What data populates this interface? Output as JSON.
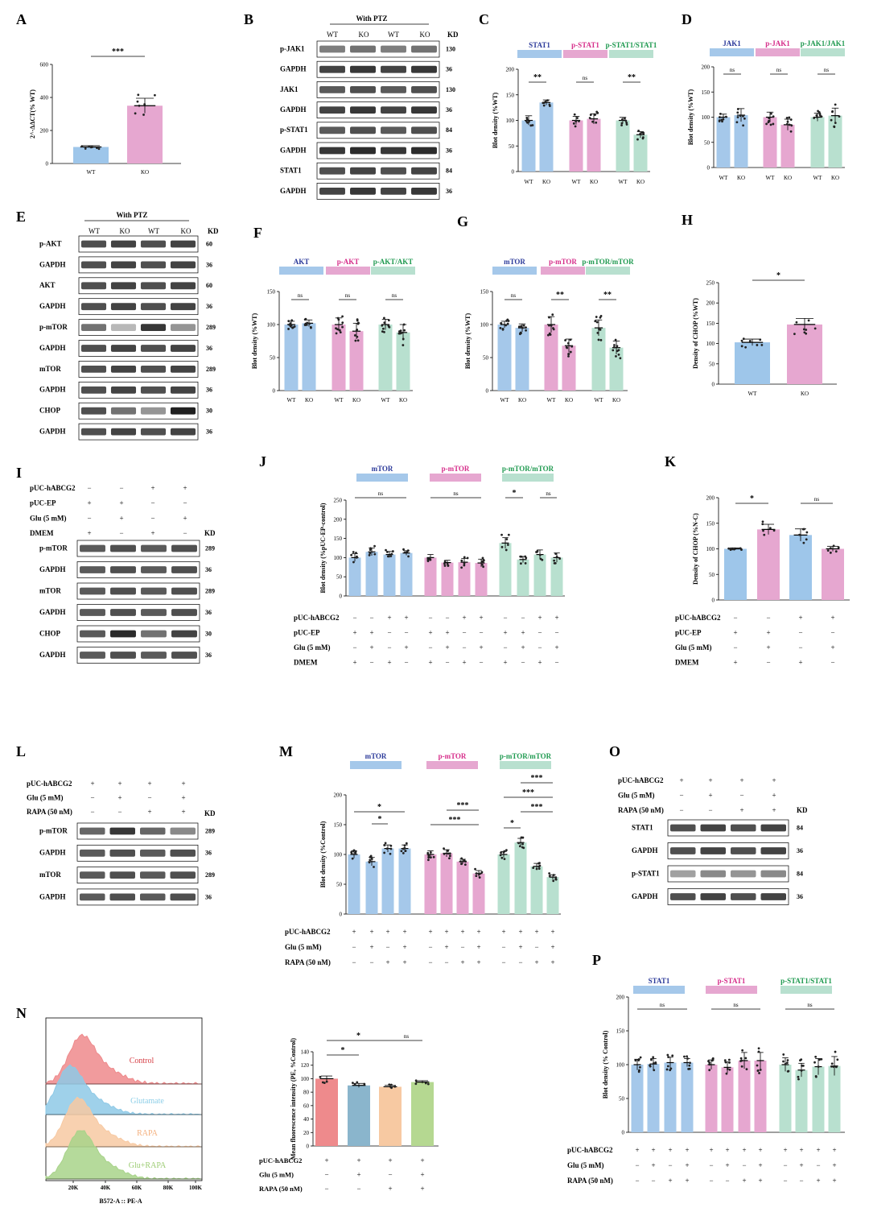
{
  "colors": {
    "blue": "#a5c8ea",
    "blue_bar": "#9ec6ea",
    "pink": "#e6a7d0",
    "green": "#b8e0cf",
    "orange": "#f7c9a2",
    "red_hist": "#ee8a8c",
    "blue_hist": "#8ec9e6",
    "green_hist": "#a8d38a",
    "blue_text": "#2b3a9a",
    "pink_text": "#d62d8a",
    "green_text": "#1f9a50"
  },
  "panels": {
    "A": {
      "letter": "A",
      "ylabel": "2^-ΔΔCT(% WT)",
      "sig": "***",
      "xticks": [
        "WT",
        "KO"
      ],
      "yticks": [
        "0",
        "200",
        "400",
        "600"
      ]
    },
    "B": {
      "letter": "B",
      "header": "With PTZ",
      "cols": [
        "WT",
        "KO",
        "WT",
        "KO"
      ],
      "kd": "KD",
      "rows": [
        {
          "name": "p-JAK1",
          "kd": "130"
        },
        {
          "name": "GAPDH",
          "kd": "36"
        },
        {
          "name": "JAK1",
          "kd": "130"
        },
        {
          "name": "GAPDH",
          "kd": "36"
        },
        {
          "name": "p-STAT1",
          "kd": "84"
        },
        {
          "name": "GAPDH",
          "kd": "36"
        },
        {
          "name": "STAT1",
          "kd": "84"
        },
        {
          "name": "GAPDH",
          "kd": "36"
        }
      ]
    },
    "C": {
      "letter": "C",
      "legend": [
        "STAT1",
        "p-STAT1",
        "p-STAT1/STAT1"
      ],
      "sig": [
        "**",
        "ns",
        "**"
      ],
      "ylabel": "Blot density (%WT)",
      "yticks": [
        "0",
        "50",
        "100",
        "150",
        "200"
      ],
      "xticks": [
        "WT",
        "KO"
      ]
    },
    "D": {
      "letter": "D",
      "legend": [
        "JAK1",
        "p-JAK1",
        "p-JAK1/JAK1"
      ],
      "sig": [
        "ns",
        "ns",
        "ns"
      ],
      "ylabel": "Blot density (%WT)",
      "yticks": [
        "0",
        "50",
        "100",
        "150",
        "200"
      ],
      "xticks": [
        "WT",
        "KO"
      ]
    },
    "E": {
      "letter": "E",
      "header": "With PTZ",
      "cols": [
        "WT",
        "KO",
        "WT",
        "KO"
      ],
      "kd": "KD",
      "rows": [
        {
          "name": "p-AKT",
          "kd": "60"
        },
        {
          "name": "GAPDH",
          "kd": "36"
        },
        {
          "name": "AKT",
          "kd": "60"
        },
        {
          "name": "GAPDH",
          "kd": "36"
        },
        {
          "name": "p-mTOR",
          "kd": "289"
        },
        {
          "name": "GAPDH",
          "kd": "36"
        },
        {
          "name": "mTOR",
          "kd": "289"
        },
        {
          "name": "GAPDH",
          "kd": "36"
        },
        {
          "name": "CHOP",
          "kd": "30"
        },
        {
          "name": "GAPDH",
          "kd": "36"
        }
      ]
    },
    "F": {
      "letter": "F",
      "legend": [
        "AKT",
        "p-AKT",
        "p-AKT/AKT"
      ],
      "sig": [
        "ns",
        "ns",
        "ns"
      ],
      "ylabel": "Blot density (%WT)",
      "yticks": [
        "0",
        "50",
        "100",
        "150"
      ],
      "xticks": [
        "WT",
        "KO"
      ]
    },
    "G": {
      "letter": "G",
      "legend": [
        "mTOR",
        "p-mTOR",
        "p-mTOR/mTOR"
      ],
      "sig": [
        "ns",
        "**",
        "**"
      ],
      "ylabel": "Blot density (%WT)",
      "yticks": [
        "0",
        "50",
        "100",
        "150"
      ],
      "xticks": [
        "WT",
        "KO"
      ]
    },
    "H": {
      "letter": "H",
      "ylabel": "Density of CHOP (%WT)",
      "sig": "*",
      "yticks": [
        "0",
        "50",
        "100",
        "150",
        "200",
        "250"
      ],
      "xticks": [
        "WT",
        "KO"
      ]
    },
    "I": {
      "letter": "I",
      "conds": [
        {
          "name": "pUC-hABCG2",
          "v": [
            "−",
            "−",
            "+",
            "+"
          ]
        },
        {
          "name": "pUC-EP",
          "v": [
            "+",
            "+",
            "−",
            "−"
          ]
        },
        {
          "name": "Glu (5 mM)",
          "v": [
            "−",
            "+",
            "−",
            "+"
          ]
        },
        {
          "name": "DMEM",
          "v": [
            "+",
            "−",
            "+",
            "−"
          ]
        }
      ],
      "kd": "KD",
      "rows": [
        {
          "name": "p-mTOR",
          "kd": "289"
        },
        {
          "name": "GAPDH",
          "kd": "36"
        },
        {
          "name": "mTOR",
          "kd": "289"
        },
        {
          "name": "GAPDH",
          "kd": "36"
        },
        {
          "name": "CHOP",
          "kd": "30"
        },
        {
          "name": "GAPDH",
          "kd": "36"
        }
      ]
    },
    "J": {
      "letter": "J",
      "legend": [
        "mTOR",
        "p-mTOR",
        "p-mTOR/mTOR"
      ],
      "ylabel": "Blot density (%pUC-EP-control)",
      "yticks": [
        "0",
        "50",
        "100",
        "150",
        "200",
        "250"
      ],
      "sig": [
        "ns",
        "ns",
        "*",
        "ns"
      ],
      "conds": [
        {
          "name": "pUC-hABCG2",
          "v": [
            "−",
            "−",
            "+",
            "+"
          ]
        },
        {
          "name": "pUC-EP",
          "v": [
            "+",
            "+",
            "−",
            "−"
          ]
        },
        {
          "name": "Glu (5 mM)",
          "v": [
            "−",
            "+",
            "−",
            "+"
          ]
        },
        {
          "name": "DMEM",
          "v": [
            "+",
            "−",
            "+",
            "−"
          ]
        }
      ]
    },
    "K": {
      "letter": "K",
      "ylabel": "Density of CHOP (%N-C)",
      "yticks": [
        "0",
        "50",
        "100",
        "150",
        "200"
      ],
      "sig": [
        "*",
        "ns"
      ],
      "conds": [
        {
          "name": "pUC-hABCG2",
          "v": [
            "−",
            "−",
            "+",
            "+"
          ]
        },
        {
          "name": "pUC-EP",
          "v": [
            "+",
            "+",
            "−",
            "−"
          ]
        },
        {
          "name": "Glu (5 mM)",
          "v": [
            "−",
            "+",
            "−",
            "+"
          ]
        },
        {
          "name": "DMEM",
          "v": [
            "+",
            "−",
            "+",
            "−"
          ]
        }
      ]
    },
    "L": {
      "letter": "L",
      "conds": [
        {
          "name": "pUC-hABCG2",
          "v": [
            "+",
            "+",
            "+",
            "+"
          ]
        },
        {
          "name": "Glu (5 mM)",
          "v": [
            "−",
            "+",
            "−",
            "+"
          ]
        },
        {
          "name": "RAPA (50 nM)",
          "v": [
            "−",
            "−",
            "+",
            "+"
          ]
        }
      ],
      "kd": "KD",
      "rows": [
        {
          "name": "p-mTOR",
          "kd": "289"
        },
        {
          "name": "GAPDH",
          "kd": "36"
        },
        {
          "name": "mTOR",
          "kd": "289"
        },
        {
          "name": "GAPDH",
          "kd": "36"
        }
      ]
    },
    "M": {
      "letter": "M",
      "legend": [
        "mTOR",
        "p-mTOR",
        "p-mTOR/mTOR"
      ],
      "ylabel": "Blot density (%Control)",
      "yticks": [
        "0",
        "50",
        "100",
        "150",
        "200"
      ],
      "sig": [
        "*",
        "*",
        "***",
        "***",
        "*",
        "***",
        "***",
        "***"
      ],
      "conds": [
        {
          "name": "pUC-hABCG2",
          "v": [
            "+",
            "+",
            "+",
            "+"
          ]
        },
        {
          "name": "Glu (5 mM)",
          "v": [
            "−",
            "+",
            "−",
            "+"
          ]
        },
        {
          "name": "RAPA (50 nM)",
          "v": [
            "−",
            "−",
            "+",
            "+"
          ]
        }
      ]
    },
    "N": {
      "letter": "N",
      "hist_labels": [
        "Control",
        "Glutamate",
        "RAPA",
        "Glu+RAPA"
      ],
      "hist_xticks": [
        "20K",
        "40K",
        "60K",
        "80K",
        "100K"
      ],
      "hist_xlabel": "B572-A :: PE-A",
      "bar_ylabel": "Mean fluorescence intensity (PE, %Control)",
      "bar_yticks": [
        "0",
        "20",
        "40",
        "60",
        "80",
        "100",
        "120",
        "140"
      ],
      "sig": [
        "*",
        "*",
        "ns"
      ],
      "conds": [
        {
          "name": "pUC-hABCG2",
          "v": [
            "+",
            "+",
            "+",
            "+"
          ]
        },
        {
          "name": "Glu (5 mM)",
          "v": [
            "−",
            "+",
            "−",
            "+"
          ]
        },
        {
          "name": "RAPA (50 nM)",
          "v": [
            "−",
            "−",
            "+",
            "+"
          ]
        }
      ]
    },
    "O": {
      "letter": "O",
      "conds": [
        {
          "name": "pUC-hABCG2",
          "v": [
            "+",
            "+",
            "+",
            "+"
          ]
        },
        {
          "name": "Glu (5 mM)",
          "v": [
            "−",
            "+",
            "−",
            "+"
          ]
        },
        {
          "name": "RAPA (50 nM)",
          "v": [
            "−",
            "−",
            "+",
            "+"
          ]
        }
      ],
      "kd": "KD",
      "rows": [
        {
          "name": "STAT1",
          "kd": "84"
        },
        {
          "name": "GAPDH",
          "kd": "36"
        },
        {
          "name": "p-STAT1",
          "kd": "84"
        },
        {
          "name": "GAPDH",
          "kd": "36"
        }
      ]
    },
    "P": {
      "letter": "P",
      "legend": [
        "STAT1",
        "p-STAT1",
        "p-STAT1/STAT1"
      ],
      "ylabel": "Blot density (% Control)",
      "yticks": [
        "0",
        "50",
        "100",
        "150",
        "200"
      ],
      "sig": [
        "ns",
        "ns",
        "ns"
      ],
      "conds": [
        {
          "name": "pUC-hABCG2",
          "v": [
            "+",
            "+",
            "+",
            "+"
          ]
        },
        {
          "name": "Glu (5 mM)",
          "v": [
            "−",
            "+",
            "−",
            "+"
          ]
        },
        {
          "name": "RAPA (50 nM)",
          "v": [
            "−",
            "−",
            "+",
            "+"
          ]
        }
      ]
    }
  },
  "chart_data": [
    {
      "panel": "A",
      "type": "bar",
      "categories": [
        "WT",
        "KO"
      ],
      "values": [
        100,
        350
      ],
      "errors": [
        8,
        45
      ],
      "ylim": [
        0,
        600
      ]
    },
    {
      "panel": "C",
      "type": "bar",
      "groups": [
        "STAT1",
        "p-STAT1",
        "p-STAT1/STAT1"
      ],
      "categories": [
        "WT",
        "KO"
      ],
      "values": [
        [
          100,
          135
        ],
        [
          100,
          103
        ],
        [
          100,
          72
        ]
      ],
      "errors": [
        [
          9,
          5
        ],
        [
          8,
          10
        ],
        [
          6,
          6
        ]
      ],
      "ylim": [
        0,
        200
      ]
    },
    {
      "panel": "D",
      "type": "bar",
      "groups": [
        "JAK1",
        "p-JAK1",
        "p-JAK1/JAK1"
      ],
      "categories": [
        "WT",
        "KO"
      ],
      "values": [
        [
          100,
          104
        ],
        [
          100,
          85
        ],
        [
          100,
          103
        ]
      ],
      "errors": [
        [
          6,
          13
        ],
        [
          10,
          11
        ],
        [
          8,
          15
        ]
      ],
      "ylim": [
        0,
        200
      ]
    },
    {
      "panel": "F",
      "type": "bar",
      "groups": [
        "AKT",
        "p-AKT",
        "p-AKT/AKT"
      ],
      "categories": [
        "WT",
        "KO"
      ],
      "values": [
        [
          100,
          102
        ],
        [
          100,
          90
        ],
        [
          100,
          88
        ]
      ],
      "errors": [
        [
          5,
          5
        ],
        [
          10,
          12
        ],
        [
          8,
          12
        ]
      ],
      "ylim": [
        0,
        150
      ]
    },
    {
      "panel": "G",
      "type": "bar",
      "groups": [
        "mTOR",
        "p-mTOR",
        "p-mTOR/mTOR"
      ],
      "categories": [
        "WT",
        "KO"
      ],
      "values": [
        [
          100,
          95
        ],
        [
          100,
          68
        ],
        [
          95,
          65
        ]
      ],
      "errors": [
        [
          5,
          6
        ],
        [
          12,
          10
        ],
        [
          12,
          10
        ]
      ],
      "ylim": [
        0,
        150
      ]
    },
    {
      "panel": "H",
      "type": "bar",
      "categories": [
        "WT",
        "KO"
      ],
      "values": [
        103,
        147
      ],
      "errors": [
        8,
        15
      ],
      "ylim": [
        0,
        250
      ]
    },
    {
      "panel": "J",
      "type": "bar",
      "groups": [
        "mTOR",
        "p-mTOR",
        "p-mTOR/mTOR"
      ],
      "values": [
        [
          100,
          115,
          108,
          112
        ],
        [
          100,
          87,
          88,
          86
        ],
        [
          138,
          95,
          108,
          100
        ]
      ],
      "errors": [
        [
          10,
          10,
          8,
          6
        ],
        [
          8,
          6,
          10,
          10
        ],
        [
          14,
          8,
          12,
          12
        ]
      ],
      "ylim": [
        0,
        250
      ]
    },
    {
      "panel": "K",
      "type": "bar",
      "values": [
        100,
        138,
        127,
        100
      ],
      "errors": [
        2,
        10,
        12,
        5
      ],
      "ylim": [
        0,
        200
      ]
    },
    {
      "panel": "M",
      "type": "bar",
      "groups": [
        "mTOR",
        "p-mTOR",
        "p-mTOR/mTOR"
      ],
      "values": [
        [
          100,
          88,
          110,
          110
        ],
        [
          100,
          102,
          88,
          68
        ],
        [
          100,
          120,
          80,
          62
        ]
      ],
      "errors": [
        [
          6,
          7,
          6,
          6
        ],
        [
          6,
          6,
          4,
          5
        ],
        [
          5,
          7,
          5,
          4
        ]
      ],
      "ylim": [
        0,
        200
      ]
    },
    {
      "panel": "N",
      "type": "bar",
      "values": [
        100,
        90,
        88,
        95
      ],
      "errors": [
        4,
        3,
        2,
        2
      ],
      "ylim": [
        0,
        140
      ]
    },
    {
      "panel": "P",
      "type": "bar",
      "groups": [
        "STAT1",
        "p-STAT1",
        "p-STAT1/STAT1"
      ],
      "values": [
        [
          100,
          101,
          103,
          103
        ],
        [
          100,
          96,
          106,
          106
        ],
        [
          100,
          92,
          97,
          98
        ]
      ],
      "errors": [
        [
          8,
          8,
          8,
          6
        ],
        [
          7,
          8,
          12,
          12
        ],
        [
          10,
          10,
          12,
          14
        ]
      ],
      "ylim": [
        0,
        200
      ]
    }
  ]
}
